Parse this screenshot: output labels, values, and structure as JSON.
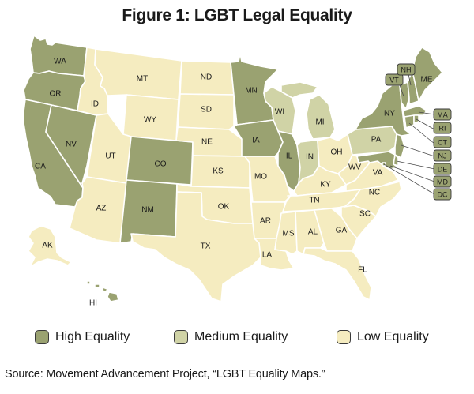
{
  "title": "Figure 1: LGBT Legal Equality",
  "legend": [
    {
      "key": "high",
      "label": "High Equality",
      "color": "#9aa271"
    },
    {
      "key": "medium",
      "label": "Medium Equality",
      "color": "#d0d3a6"
    },
    {
      "key": "low",
      "label": "Low Equality",
      "color": "#f5ecc0"
    }
  ],
  "source": "Source: Movement Advancement Project, “LGBT Equality Maps.”",
  "states": {
    "WA": "high",
    "OR": "high",
    "CA": "high",
    "NV": "high",
    "CO": "high",
    "NM": "high",
    "MN": "high",
    "IA": "high",
    "IL": "high",
    "NY": "high",
    "VT": "high",
    "NH": "high",
    "ME": "high",
    "MA": "high",
    "RI": "high",
    "CT": "high",
    "NJ": "high",
    "DE": "high",
    "MD": "high",
    "DC": "high",
    "HI": "high",
    "WI": "medium",
    "IN": "medium",
    "MI": "medium",
    "PA": "medium",
    "ID": "low",
    "MT": "low",
    "WY": "low",
    "UT": "low",
    "AZ": "low",
    "ND": "low",
    "SD": "low",
    "NE": "low",
    "KS": "low",
    "OK": "low",
    "TX": "low",
    "MO": "low",
    "AR": "low",
    "LA": "low",
    "MS": "low",
    "AL": "low",
    "GA": "low",
    "FL": "low",
    "SC": "low",
    "NC": "low",
    "TN": "low",
    "KY": "low",
    "OH": "low",
    "WV": "low",
    "VA": "low",
    "AK": "low"
  }
}
